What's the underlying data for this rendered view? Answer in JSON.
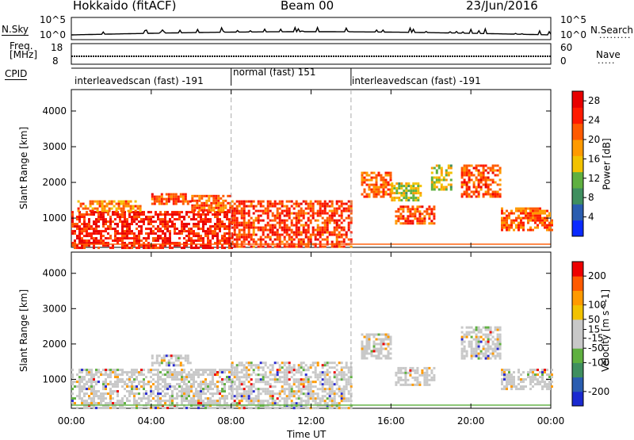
{
  "header": {
    "station": "Hokkaido (fitACF)",
    "beam": "Beam 00",
    "date": "23/Jun/2016"
  },
  "side_labels": {
    "nsky": "N.Sky",
    "freq_line1": "Freq.",
    "freq_line2": "[MHz]",
    "cpid": "CPID",
    "nsearch": "N.Search",
    "nave": "Nave"
  },
  "top_axes": {
    "nsky_ticks": [
      "10^5",
      "10^0"
    ],
    "nsearch_ticks": [
      "10^5",
      "10^0"
    ],
    "freq_ticks": [
      "18",
      "8"
    ],
    "nave_ticks": [
      "60",
      "0"
    ]
  },
  "cpid_segments": [
    {
      "label": "interleavedscan (fast) -191",
      "start": 0.0,
      "end": 8.0
    },
    {
      "label": "normal (fast) 151",
      "start": 8.0,
      "end": 14.0
    },
    {
      "label": "interleavedscan (fast) -191",
      "start": 14.0,
      "end": 24.0
    }
  ],
  "colors": {
    "power": [
      "#0a2aff",
      "#2a5db0",
      "#3f8f5f",
      "#5fb040",
      "#f2c200",
      "#ff9a00",
      "#ff5a00",
      "#ff1a00",
      "#e80000"
    ],
    "velocity": [
      "#ee0000",
      "#ff5a00",
      "#ff9a00",
      "#f2c200",
      "#c8c8c8",
      "#c8c8c8",
      "#5fb040",
      "#3f8f5f",
      "#2a5db0",
      "#1a2ad0"
    ]
  },
  "chart_data": [
    {
      "type": "heatmap",
      "name": "power",
      "title": "",
      "xlabel": "",
      "ylabel": "Slant Range [km]",
      "xlim": [
        0,
        24
      ],
      "ylim": [
        180,
        4600
      ],
      "yticks": [
        1000,
        2000,
        3000,
        4000
      ],
      "colorbar": {
        "label": "Power [dB]",
        "ticks": [
          4,
          8,
          12,
          16,
          20,
          24,
          28
        ],
        "range": [
          0,
          30
        ]
      },
      "regions": [
        {
          "t0": 0.0,
          "t1": 8.0,
          "r0": 200,
          "r1": 1200,
          "value": 27
        },
        {
          "t0": 0.3,
          "t1": 3.5,
          "r0": 1200,
          "r1": 1500,
          "value": 20
        },
        {
          "t0": 4.0,
          "t1": 6.0,
          "r0": 1400,
          "r1": 1700,
          "value": 24
        },
        {
          "t0": 6.0,
          "t1": 8.0,
          "r0": 1200,
          "r1": 1650,
          "value": 22
        },
        {
          "t0": 8.0,
          "t1": 14.0,
          "r0": 200,
          "r1": 1500,
          "value": 25
        },
        {
          "t0": 14.5,
          "t1": 16.0,
          "r0": 1600,
          "r1": 2300,
          "value": 22
        },
        {
          "t0": 16.2,
          "t1": 18.2,
          "r0": 850,
          "r1": 1350,
          "value": 24
        },
        {
          "t0": 16.0,
          "t1": 17.5,
          "r0": 1500,
          "r1": 2000,
          "value": 14
        },
        {
          "t0": 18.0,
          "t1": 19.0,
          "r0": 1800,
          "r1": 2500,
          "value": 14
        },
        {
          "t0": 19.5,
          "t1": 21.5,
          "r0": 1600,
          "r1": 2500,
          "value": 24
        },
        {
          "t0": 21.5,
          "t1": 24.0,
          "r0": 700,
          "r1": 1300,
          "value": 22
        }
      ]
    },
    {
      "type": "heatmap",
      "name": "velocity",
      "title": "",
      "xlabel": "Time UT",
      "ylabel": "Slant Range [km]",
      "xlim": [
        0,
        24
      ],
      "ylim": [
        180,
        4600
      ],
      "xticks": [
        "00:00",
        "04:00",
        "08:00",
        "12:00",
        "16:00",
        "20:00",
        "00:00"
      ],
      "yticks": [
        1000,
        2000,
        3000,
        4000
      ],
      "colorbar": {
        "label": "Velocity [m s^-1]",
        "ticks": [
          200,
          100,
          50,
          15,
          -15,
          -50,
          -100,
          -200
        ],
        "range": [
          -250,
          250
        ]
      },
      "regions": [
        {
          "t0": 0.0,
          "t1": 8.0,
          "r0": 200,
          "r1": 1300,
          "value": 0
        },
        {
          "t0": 4.0,
          "t1": 6.0,
          "r0": 1400,
          "r1": 1700,
          "value": 0
        },
        {
          "t0": 8.0,
          "t1": 14.0,
          "r0": 200,
          "r1": 1500,
          "value": 0
        },
        {
          "t0": 14.5,
          "t1": 16.0,
          "r0": 1600,
          "r1": 2300,
          "value": 0
        },
        {
          "t0": 16.2,
          "t1": 18.2,
          "r0": 850,
          "r1": 1350,
          "value": 0
        },
        {
          "t0": 19.5,
          "t1": 21.5,
          "r0": 1600,
          "r1": 2500,
          "value": 0
        },
        {
          "t0": 21.5,
          "t1": 24.0,
          "r0": 700,
          "r1": 1300,
          "value": 0
        }
      ]
    }
  ]
}
